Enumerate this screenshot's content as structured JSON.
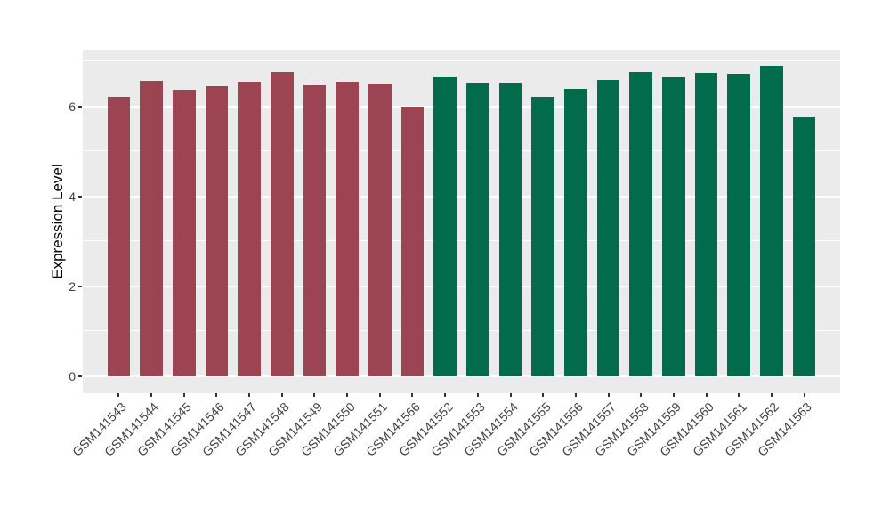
{
  "chart_data": {
    "type": "bar",
    "title": "",
    "xlabel": "",
    "ylabel": "Expression Level",
    "categories": [
      "GSM141543",
      "GSM141544",
      "GSM141545",
      "GSM141546",
      "GSM141547",
      "GSM141548",
      "GSM141549",
      "GSM141550",
      "GSM141551",
      "GSM141566",
      "GSM141552",
      "GSM141553",
      "GSM141554",
      "GSM141555",
      "GSM141556",
      "GSM141557",
      "GSM141558",
      "GSM141559",
      "GSM141560",
      "GSM141561",
      "GSM141562",
      "GSM141563"
    ],
    "values": [
      6.21,
      6.57,
      6.36,
      6.45,
      6.54,
      6.76,
      6.48,
      6.55,
      6.5,
      5.99,
      6.66,
      6.52,
      6.53,
      6.21,
      6.38,
      6.58,
      6.76,
      6.64,
      6.75,
      6.72,
      6.9,
      5.77
    ],
    "groups": [
      "A",
      "A",
      "A",
      "A",
      "A",
      "A",
      "A",
      "A",
      "A",
      "A",
      "B",
      "B",
      "B",
      "B",
      "B",
      "B",
      "B",
      "B",
      "B",
      "B",
      "B",
      "B"
    ],
    "group_colors": {
      "A": "#9C4451",
      "B": "#026B4C"
    },
    "ylim": [
      0,
      7.26
    ],
    "y_range_expanded": [
      -0.38,
      7.26
    ],
    "yticks": [
      0,
      2,
      4,
      6
    ],
    "yticks_minor": [
      1,
      3,
      5,
      7
    ],
    "grid": true,
    "legend_position": "none",
    "panel_bg": "#EBEBEB",
    "grid_color": "#FFFFFF",
    "tick_color": "#333333",
    "axis_text_color": "#404040",
    "bar_width_fraction": 0.7,
    "x_padding": 0.6
  }
}
